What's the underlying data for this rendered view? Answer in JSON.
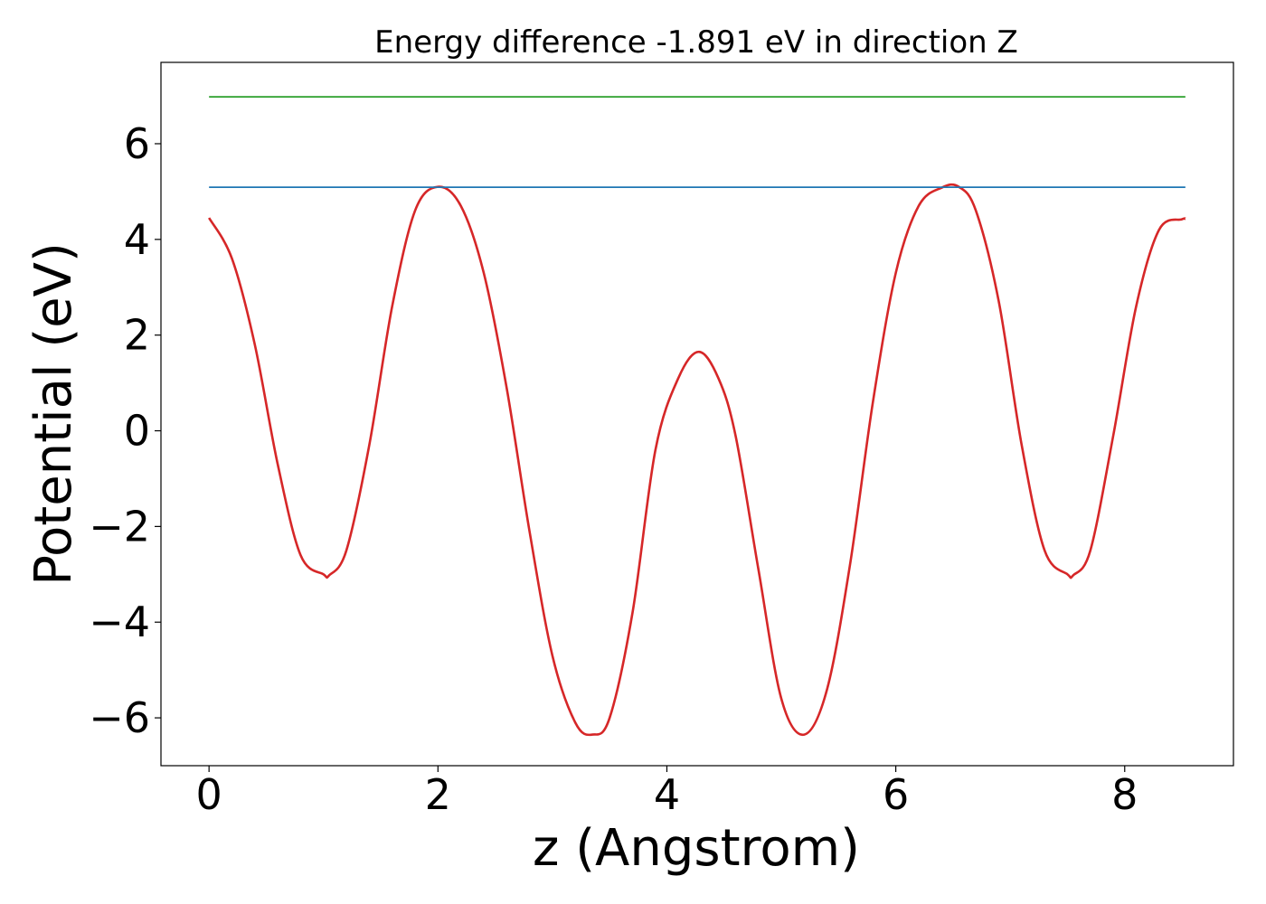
{
  "chart_data": {
    "type": "line",
    "title": "Energy difference -1.891 eV in direction Z",
    "xlabel": "z (Angstrom)",
    "ylabel": "Potential (eV)",
    "xlim": [
      -0.42,
      8.95
    ],
    "ylim": [
      -7.0,
      7.7
    ],
    "xticks": [
      {
        "value": 0,
        "label": "0"
      },
      {
        "value": 2,
        "label": "2"
      },
      {
        "value": 4,
        "label": "4"
      },
      {
        "value": 6,
        "label": "6"
      },
      {
        "value": 8,
        "label": "8"
      }
    ],
    "yticks": [
      {
        "value": -6,
        "label": "−6"
      },
      {
        "value": -4,
        "label": "−4"
      },
      {
        "value": -2,
        "label": "−2"
      },
      {
        "value": 0,
        "label": "0"
      },
      {
        "value": 2,
        "label": "2"
      },
      {
        "value": 4,
        "label": "4"
      },
      {
        "value": 6,
        "label": "6"
      }
    ],
    "grid": false,
    "legend": "none",
    "series": [
      {
        "color": "#d62728",
        "kind": "curve",
        "x": [
          0.0,
          0.2,
          0.4,
          0.6,
          0.8,
          1.0,
          1.05,
          1.2,
          1.4,
          1.6,
          1.8,
          2.0,
          2.2,
          2.4,
          2.6,
          2.8,
          3.0,
          3.2,
          3.35,
          3.5,
          3.7,
          3.9,
          4.1,
          4.28,
          4.45,
          4.6,
          4.8,
          5.0,
          5.2,
          5.4,
          5.6,
          5.8,
          6.0,
          6.2,
          6.4,
          6.55,
          6.7,
          6.9,
          7.1,
          7.3,
          7.5,
          7.55,
          7.7,
          7.9,
          8.1,
          8.3,
          8.5,
          8.53
        ],
        "y": [
          4.45,
          3.6,
          1.8,
          -0.7,
          -2.6,
          -3.0,
          -3.02,
          -2.5,
          -0.3,
          2.6,
          4.6,
          5.1,
          4.7,
          3.3,
          0.9,
          -2.1,
          -4.7,
          -6.1,
          -6.35,
          -6.0,
          -3.8,
          -0.4,
          1.1,
          1.65,
          1.1,
          -0.1,
          -2.9,
          -5.6,
          -6.35,
          -5.4,
          -2.8,
          0.6,
          3.3,
          4.7,
          5.08,
          5.1,
          4.6,
          2.7,
          -0.3,
          -2.5,
          -3.0,
          -3.02,
          -2.5,
          -0.1,
          2.6,
          4.2,
          4.42,
          4.43
        ]
      },
      {
        "color": "#1f77b4",
        "kind": "flat",
        "x": [
          0.0,
          8.53
        ],
        "y": [
          5.09,
          5.09
        ]
      },
      {
        "color": "#2ca02c",
        "kind": "flat",
        "x": [
          0.0,
          8.53
        ],
        "y": [
          6.98,
          6.98
        ]
      }
    ]
  }
}
